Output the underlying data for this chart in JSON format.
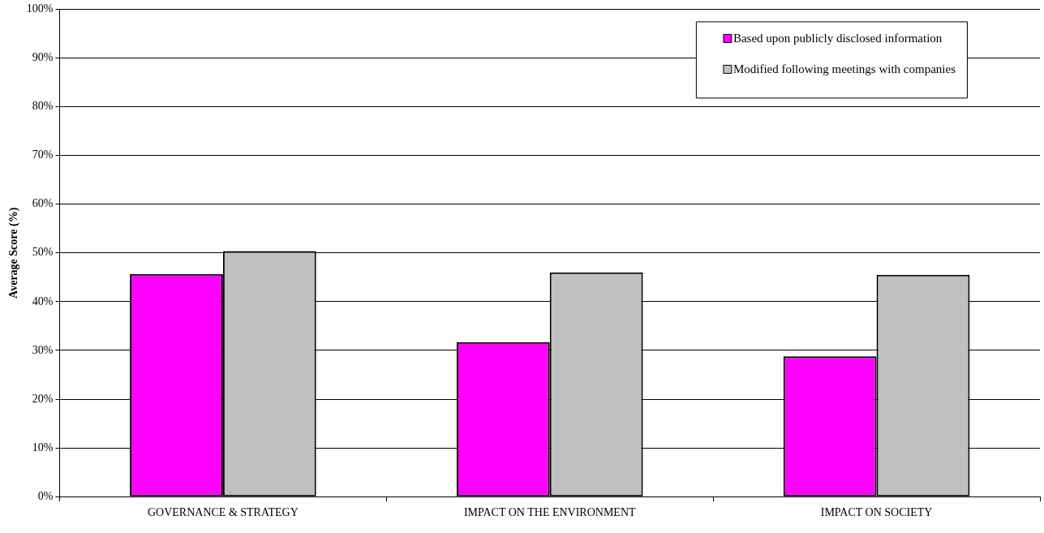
{
  "chart_data": {
    "type": "bar",
    "ylabel": "Average Score (%)",
    "categories": [
      "GOVERNANCE & STRATEGY",
      "IMPACT ON THE ENVIRONMENT",
      "IMPACT ON SOCIETY"
    ],
    "series": [
      {
        "name": "Based upon publicly disclosed information",
        "color": "#ff00ff",
        "values": [
          45.7,
          31.7,
          28.8
        ]
      },
      {
        "name": "Modified following meetings with companies",
        "color": "#c0c0c0",
        "values": [
          50.4,
          46,
          45.5
        ]
      }
    ],
    "ylim": [
      0,
      100
    ],
    "yticks": [
      {
        "value": 0,
        "label": "0%"
      },
      {
        "value": 10,
        "label": "10%"
      },
      {
        "value": 20,
        "label": "20%"
      },
      {
        "value": 30,
        "label": "30%"
      },
      {
        "value": 40,
        "label": "40%"
      },
      {
        "value": 50,
        "label": "50%"
      },
      {
        "value": 60,
        "label": "60%"
      },
      {
        "value": 70,
        "label": "70%"
      },
      {
        "value": 80,
        "label": "80%"
      },
      {
        "value": 90,
        "label": "90%"
      },
      {
        "value": 100,
        "label": "100%"
      }
    ],
    "grid": "y",
    "legend": "top right"
  }
}
